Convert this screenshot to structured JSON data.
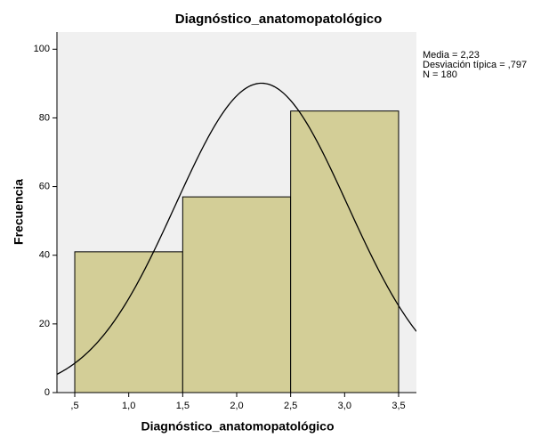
{
  "chart_data": {
    "type": "histogram",
    "title": "Diagnóstico_anatomopatológico",
    "x_label": "Diagnóstico_anatomopatológico",
    "y_label": "Frecuencia",
    "bins": [
      0.5,
      1.5,
      2.5,
      3.5
    ],
    "values": [
      41,
      57,
      82
    ],
    "color": "#d3ce97",
    "xlim": [
      0.335,
      3.665
    ],
    "ylim": [
      0,
      105
    ],
    "xticks": [
      {
        "value": 0.5,
        "label": ",5"
      },
      {
        "value": 1.0,
        "label": "1,0"
      },
      {
        "value": 1.5,
        "label": "1,5"
      },
      {
        "value": 2.0,
        "label": "2,0"
      },
      {
        "value": 2.5,
        "label": "2,5"
      },
      {
        "value": 3.0,
        "label": "3,0"
      },
      {
        "value": 3.5,
        "label": "3,5"
      }
    ],
    "yticks": [
      0,
      20,
      40,
      60,
      80,
      100
    ],
    "stats": [
      {
        "value": 2.23,
        "label": "Media = 2,23"
      },
      {
        "value": 0.797,
        "label": "Desviación típica = ,797"
      },
      {
        "value": 180,
        "label": "N = 180"
      }
    ]
  }
}
